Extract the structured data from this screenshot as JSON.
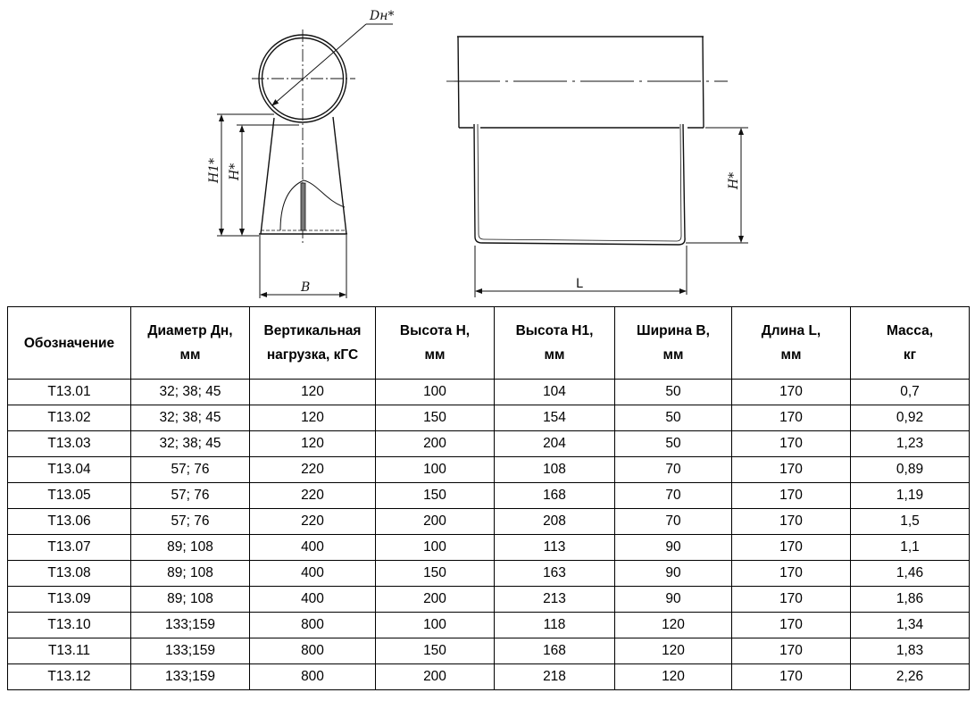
{
  "drawing": {
    "labels": {
      "dn": "Dн*",
      "h1": "H1*",
      "h_left": "H*",
      "b": "B",
      "h_right": "H*",
      "l": "L"
    }
  },
  "table": {
    "headers": [
      [
        "Обозначение"
      ],
      [
        "Диаметр Дн,",
        "мм"
      ],
      [
        "Вертикальная",
        "нагрузка, кГС"
      ],
      [
        "Высота H,",
        "мм"
      ],
      [
        "Высота H1,",
        "мм"
      ],
      [
        "Ширина B,",
        "мм"
      ],
      [
        "Длина L,",
        "мм"
      ],
      [
        "Масса,",
        "кг"
      ]
    ],
    "rows": [
      [
        "Т13.01",
        "32; 38; 45",
        "120",
        "100",
        "104",
        "50",
        "170",
        "0,7"
      ],
      [
        "Т13.02",
        "32; 38; 45",
        "120",
        "150",
        "154",
        "50",
        "170",
        "0,92"
      ],
      [
        "Т13.03",
        "32; 38; 45",
        "120",
        "200",
        "204",
        "50",
        "170",
        "1,23"
      ],
      [
        "Т13.04",
        "57; 76",
        "220",
        "100",
        "108",
        "70",
        "170",
        "0,89"
      ],
      [
        "Т13.05",
        "57; 76",
        "220",
        "150",
        "168",
        "70",
        "170",
        "1,19"
      ],
      [
        "Т13.06",
        "57; 76",
        "220",
        "200",
        "208",
        "70",
        "170",
        "1,5"
      ],
      [
        "Т13.07",
        "89; 108",
        "400",
        "100",
        "113",
        "90",
        "170",
        "1,1"
      ],
      [
        "Т13.08",
        "89; 108",
        "400",
        "150",
        "163",
        "90",
        "170",
        "1,46"
      ],
      [
        "Т13.09",
        "89; 108",
        "400",
        "200",
        "213",
        "90",
        "170",
        "1,86"
      ],
      [
        "Т13.10",
        "133;159",
        "800",
        "100",
        "118",
        "120",
        "170",
        "1,34"
      ],
      [
        "Т13.11",
        "133;159",
        "800",
        "150",
        "168",
        "120",
        "170",
        "1,83"
      ],
      [
        "Т13.12",
        "133;159",
        "800",
        "200",
        "218",
        "120",
        "170",
        "2,26"
      ]
    ]
  }
}
